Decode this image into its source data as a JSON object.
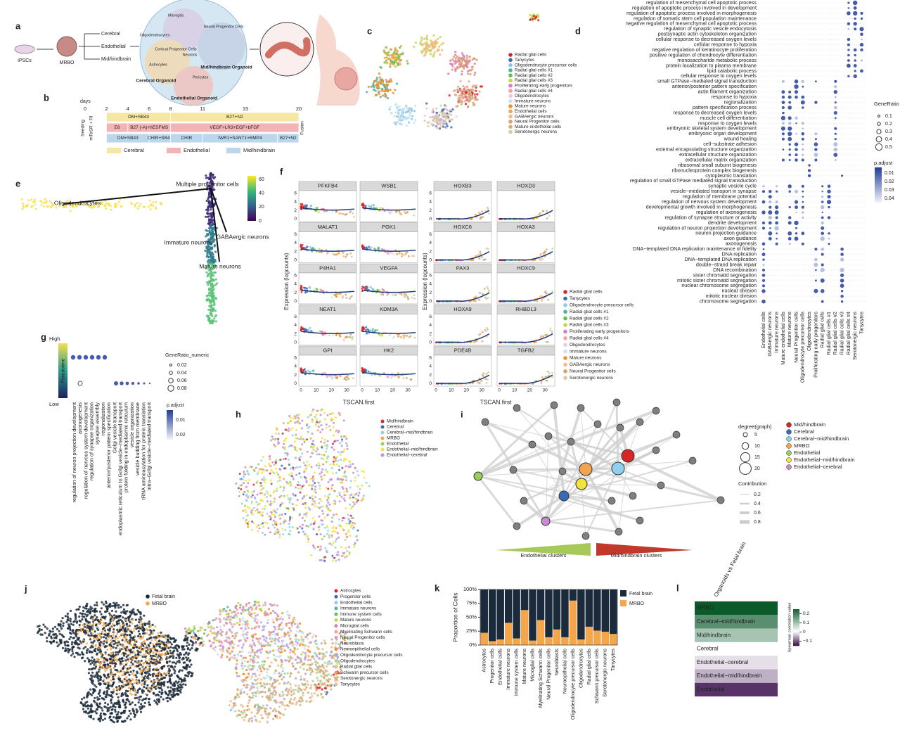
{
  "a": {
    "label": "a",
    "source": "iPSCs",
    "product": "MRBO",
    "branches": [
      "Cerebral",
      "Endothelial",
      "Mid/hindbrain"
    ],
    "cell_types": [
      "Microglia",
      "Neural Progenitor Cells",
      "Oligodendrocytes",
      "Cortical Progenitor Cells",
      "Astrocytes",
      "Neurons",
      "Pericytes"
    ],
    "organoids": [
      "Cerebral Organoid",
      "Mid/hindbrain Organoid",
      "Endothelial Organoid"
    ]
  },
  "b": {
    "label": "b",
    "days_label": "days",
    "days": [
      0,
      2,
      4,
      6,
      8,
      11,
      15,
      20
    ],
    "day_range": [
      0,
      20
    ],
    "left_labels": [
      "Seeding",
      "mTeSR + RI"
    ],
    "right_label": "Fusion",
    "rows": [
      {
        "name": "Cerebral",
        "color": "#f5e6a3",
        "segments": [
          {
            "label": "DM+SB43",
            "start": 2,
            "end": 8
          },
          {
            "label": "B27+N2",
            "start": 8,
            "end": 20
          }
        ]
      },
      {
        "name": "Endothelial",
        "color": "#f2b4b4",
        "segments": [
          {
            "label": "E6",
            "start": 2,
            "end": 4
          },
          {
            "label": "B27 (-A)+hESFMS",
            "start": 4,
            "end": 8
          },
          {
            "label": "VEGF+LR3+EGF+bFGF",
            "start": 8,
            "end": 20
          }
        ]
      },
      {
        "name": "Mid/hindbrain",
        "color": "#bad7ee",
        "segments": [
          {
            "label": "DM+SB43",
            "start": 2,
            "end": 6
          },
          {
            "label": "CHIR+SB43",
            "start": 6,
            "end": 8
          },
          {
            "label": "CHIR",
            "start": 8,
            "end": 11
          },
          {
            "label": "IWR1+SANT1+BMP4",
            "start": 11,
            "end": 18
          },
          {
            "label": "B27+N2",
            "start": 18,
            "end": 20
          }
        ]
      }
    ]
  },
  "c": {
    "label": "c",
    "legend": [
      {
        "name": "Radial glial cells",
        "color": "#d62728"
      },
      {
        "name": "Tanycytes",
        "color": "#3b6bb5"
      },
      {
        "name": "Oligodendrocyte precursor cells",
        "color": "#8fc7e8"
      },
      {
        "name": "Radial glial cells #1",
        "color": "#4fb39b"
      },
      {
        "name": "Radial glial cells #2",
        "color": "#6abf4b"
      },
      {
        "name": "Radial glial cells #3",
        "color": "#c3d94a"
      },
      {
        "name": "Proliferating early progenitors",
        "color": "#e377c2"
      },
      {
        "name": "Radial glial cells #4",
        "color": "#f4a0a0"
      },
      {
        "name": "Oligodendrocytes",
        "color": "#f5c6dc"
      },
      {
        "name": "Immature neurons",
        "color": "#c7e3f0"
      },
      {
        "name": "Mature neurons",
        "color": "#f28e2b"
      },
      {
        "name": "Endothelial cells",
        "color": "#e9a94f"
      },
      {
        "name": "GABAergic neurons",
        "color": "#f3b98a"
      },
      {
        "name": "Neural Progenitor cells",
        "color": "#d8a266"
      },
      {
        "name": "Mature endothelial cells",
        "color": "#cbb37e"
      },
      {
        "name": "Serotonergic neurons",
        "color": "#d6cba4"
      }
    ]
  },
  "d": {
    "label": "d",
    "terms": [
      "regulation of mesenchymal cell apoptotic process",
      "regulation of apoptotic process involved in development",
      "regulation of apoptotic process involved in morphogenesis",
      "regulation of somatic stem cell population maintenance",
      "negative regulation of mesenchymal cell apoptotic process",
      "regulation of synaptic vesicle endocytosis",
      "postsynaptic actin cytoskeleton organization",
      "cellular response to decreased oxygen levels",
      "cellular response to hypoxia",
      "negative regulation of keratinocyte proliferation",
      "positive regulation of chondrocyte differentiation",
      "monosaccharide metabolic process",
      "protein localization to plasma membrane",
      "lipid catabolic process",
      "cellular response to oxygen levels",
      "small GTPase−mediated signal transduction",
      "anterior/posterior pattern specification",
      "actin filament organization",
      "response to hypoxia",
      "regionalization",
      "pattern specification process",
      "response to decreased oxygen levels",
      "muscle cell differentiation",
      "response to oxygen levels",
      "embryonic skeletal system development",
      "embryonic organ development",
      "wound healing",
      "cell−substrate adhesion",
      "external encapsulating structure organization",
      "extracellular structure organization",
      "extracellular matrix organization",
      "ribosomal small subunit biogenesis",
      "ribonucleoprotein complex biogenesis",
      "cytoplasmic translation",
      "regulation of small GTPase mediated signal transduction",
      "synaptic vesicle cycle",
      "vesicle−mediated transport in synapse",
      "regulation of membrane potential",
      "regulation of nervous system development",
      "developmental growth involved in morphogenesis",
      "regulation of axonogenesis",
      "regulation of synapse structure or activity",
      "dendrite development",
      "regulation of neuron projection development",
      "neuron projection guidance",
      "axon guidance",
      "axonogenesis",
      "DNA−templated DNA replication maintenance of fidelity",
      "DNA replication",
      "DNA−templated DNA replication",
      "double−strand break repair",
      "DNA recombination",
      "sister chromatid segregation",
      "mitotic sister chromatid segregation",
      "nuclear chromosome segregation",
      "nuclear division",
      "mitotic nuclear division",
      "chromosome segregation"
    ],
    "categories": [
      "Endothelial cells",
      "GABAergic neurons",
      "Immature neurons",
      "Mature endothelial cells",
      "Mature neurons",
      "Neural Progenitor cells",
      "Oligodendrocyte precursor cells",
      "Oligodendrocytes",
      "Proliferating early progenitors",
      "Radial glial cells",
      "Radial glial cells #1",
      "Radial glial cells #2",
      "Radial glial cells #3",
      "Radial glial cells #4",
      "Serotonergic neurons",
      "Tanycytes"
    ],
    "size_title": "GeneRatio",
    "size_ticks": [
      0.1,
      0.2,
      0.3,
      0.4,
      0.5
    ],
    "color_title": "p.adjust",
    "color_ticks": [
      0.01,
      0.02,
      0.03,
      0.04
    ]
  },
  "e": {
    "label": "e",
    "annotations": [
      "Oligodendrocytes",
      "Multiple progenitor cells",
      "GABAergic neurons",
      "Immature neurons",
      "Mature neurons"
    ],
    "colorbar_ticks": [
      0,
      20,
      40,
      60
    ],
    "clim": [
      0,
      65
    ]
  },
  "f": {
    "label": "f",
    "genes_left": [
      "PFKFB4",
      "WSB1",
      "MALAT1",
      "PGK1",
      "P4HA1",
      "VEGFA",
      "NEAT1",
      "KDM3A",
      "GPI",
      "HK2"
    ],
    "genes_right": [
      "HOXB3",
      "HOXD3",
      "HOXC6",
      "HOXA3",
      "PAX3",
      "HOXC9",
      "HOXA9",
      "RHBDL3",
      "PDE4B",
      "TGFB2"
    ],
    "y_label": "Expression (logcounts)",
    "x_label": "TSCAN.first",
    "xticks": [
      0,
      10,
      20,
      30
    ],
    "xlim": [
      0,
      35
    ],
    "yticks": [
      0,
      2,
      4,
      6
    ],
    "ylim": [
      -0.6,
      6.6
    ],
    "legend": [
      "Radial glial cells",
      "Tanycytes",
      "Oligodendrocyte precursor cells",
      "Radial glial cells #1",
      "Radial glial cells #2",
      "Radial glial cells #3",
      "Proliferating early progenitors",
      "Radial glial cells #4",
      "Oligodendrocytes",
      "Immature neurons",
      "Mature neurons",
      "GABAergic neurons",
      "Neural Progenitor cells",
      "Serotonergic neurons"
    ]
  },
  "g": {
    "label": "g",
    "high": "High",
    "low": "Low",
    "scale_title": "Pseudotime",
    "terms": [
      "regulation of neuron projection development",
      "axonogenesis",
      "regulation of nervous system development",
      "regulation of synapse organization",
      "synapse assembly",
      "regionalization",
      "anterior/posterior pattern specification",
      "Golgi vesicle transport",
      "endoplasmic reticulum to Golgi vesicle−mediated transport",
      "protein folding in endoplasmic reticulum",
      "vesicle organization",
      "vesicle budding from membrane",
      "tRNA aminoacylation for protein translation",
      "intra−Golgi vesicle−mediated transport"
    ],
    "size_title": "GeneRatio_numeric",
    "size_ticks": [
      0.02,
      0.04,
      0.06,
      0.08
    ],
    "color_title": "p.adjust",
    "color_ticks": [
      0.01,
      0.02
    ]
  },
  "h": {
    "label": "h",
    "legend": [
      {
        "name": "Mid/hindbrain",
        "color": "#d62728"
      },
      {
        "name": "Cerebral",
        "color": "#3b6bb5"
      },
      {
        "name": "Cerebral−mid/hindbrain",
        "color": "#8fd0ef"
      },
      {
        "name": "MRBO",
        "color": "#f4a451"
      },
      {
        "name": "Endothelial",
        "color": "#9acd5a"
      },
      {
        "name": "Endothelial−mid/hindbrain",
        "color": "#f2e33c"
      },
      {
        "name": "Endothelial−cerebral",
        "color": "#c98ad0"
      }
    ]
  },
  "i": {
    "label": "i",
    "size_title": "degree(graph)",
    "size_ticks": [
      5,
      10,
      15,
      20
    ],
    "width_title": "Contribution",
    "width_ticks": [
      0.2,
      0.4,
      0.6,
      0.8
    ],
    "legend": [
      "Mid/hindbrain",
      "Cerebral",
      "Cerebral−mid/hindbrain",
      "MRBO",
      "Endothelial",
      "Endothelial−mid/hindbrain",
      "Endothelial−cerebral"
    ],
    "arrows": [
      "Endothelial clusters",
      "Mid/hindbrain clusters"
    ]
  },
  "j": {
    "label": "j",
    "legend1": [
      {
        "name": "Fetal brain",
        "color": "#1c2b3b"
      },
      {
        "name": "MRBO",
        "color": "#f5a54a"
      }
    ],
    "legend2": [
      {
        "name": "Astrocytes",
        "color": "#d62728"
      },
      {
        "name": "Progenitor cells",
        "color": "#3b6bb5"
      },
      {
        "name": "Endothelial cells",
        "color": "#8fc7e8"
      },
      {
        "name": "Immature neurons",
        "color": "#4fb39b"
      },
      {
        "name": "Immune system cells",
        "color": "#6abf4b"
      },
      {
        "name": "Mature neurons",
        "color": "#c3d94a"
      },
      {
        "name": "Microglial cells",
        "color": "#e377c2"
      },
      {
        "name": "Myelinating Schwann cells",
        "color": "#f4a0a0"
      },
      {
        "name": "Neural Progenitor cells",
        "color": "#c3a6d8"
      },
      {
        "name": "Neuroblasts",
        "color": "#c7e3f0"
      },
      {
        "name": "Neuroepithelial cells",
        "color": "#f28e2b"
      },
      {
        "name": "Oligodendrocyte precursor cells",
        "color": "#b8a0d8"
      },
      {
        "name": "Oligodendrocytes",
        "color": "#9edb9e"
      },
      {
        "name": "Radial glial cells",
        "color": "#f3b98a"
      },
      {
        "name": "Schwann precursor cells",
        "color": "#d8a266"
      },
      {
        "name": "Serotonergic neurons",
        "color": "#cbb37e"
      },
      {
        "name": "Tanycytes",
        "color": "#d6cba4"
      }
    ]
  },
  "k": {
    "label": "k"
  },
  "l": {
    "label": "l"
  },
  "chart_data": [
    {
      "type": "bar",
      "stacked": true,
      "y_label": "Proportion of Cells",
      "categories": [
        "Astrocytes",
        "Progenitor cells",
        "Endothelial cells",
        "Immature neurons",
        "Immune system cells",
        "Mature neurons",
        "Microglial cells",
        "Myelinating Schwann cells",
        "Neural Progenitor cells",
        "Neuroblasts",
        "Neuroepithelial cells",
        "Oligodendrocyte precursor cells",
        "Oligodendrocytes",
        "Radial glial cells",
        "Schwann precursor cells",
        "Serotonergic neurons",
        "Tanycytes"
      ],
      "series": [
        {
          "name": "Fetal brain",
          "color": "#1c2b3b",
          "values": [
            78,
            93,
            90,
            60,
            88,
            37,
            92,
            55,
            86,
            72,
            86,
            20,
            90,
            67,
            74,
            76,
            80
          ]
        },
        {
          "name": "MRBO",
          "color": "#f5a54a",
          "values": [
            22,
            7,
            10,
            40,
            12,
            63,
            8,
            45,
            14,
            28,
            14,
            80,
            10,
            33,
            26,
            24,
            20
          ]
        }
      ],
      "ylim": [
        0,
        100
      ],
      "yticks": [
        {
          "value": 0,
          "label": "0%"
        },
        {
          "value": 25,
          "label": "25%"
        },
        {
          "value": 50,
          "label": "50%"
        },
        {
          "value": 75,
          "label": "75%"
        },
        {
          "value": 100,
          "label": "100%"
        }
      ]
    },
    {
      "type": "heatmap",
      "title": "Organoids vs Fetal brain",
      "categories": [
        "MRBO",
        "Cerebral−mid/hindbrain",
        "Mid/hindbrain",
        "Cerebral",
        "Endothelial−cerebral",
        "Endothelial−mid/hindbrain",
        "Endothelial"
      ],
      "values": [
        0.25,
        0.17,
        0.09,
        0,
        -0.02,
        -0.05,
        -0.13
      ],
      "colorbar_label": "Spearman correlation value",
      "clim": [
        -0.15,
        0.25
      ],
      "colormap": [
        "#3d1450",
        "#ffffff",
        "#0b5a2a"
      ],
      "cticks": [
        0.2,
        0.1,
        0,
        {
          "value": -0.1,
          "label": "−0.1"
        }
      ]
    }
  ]
}
